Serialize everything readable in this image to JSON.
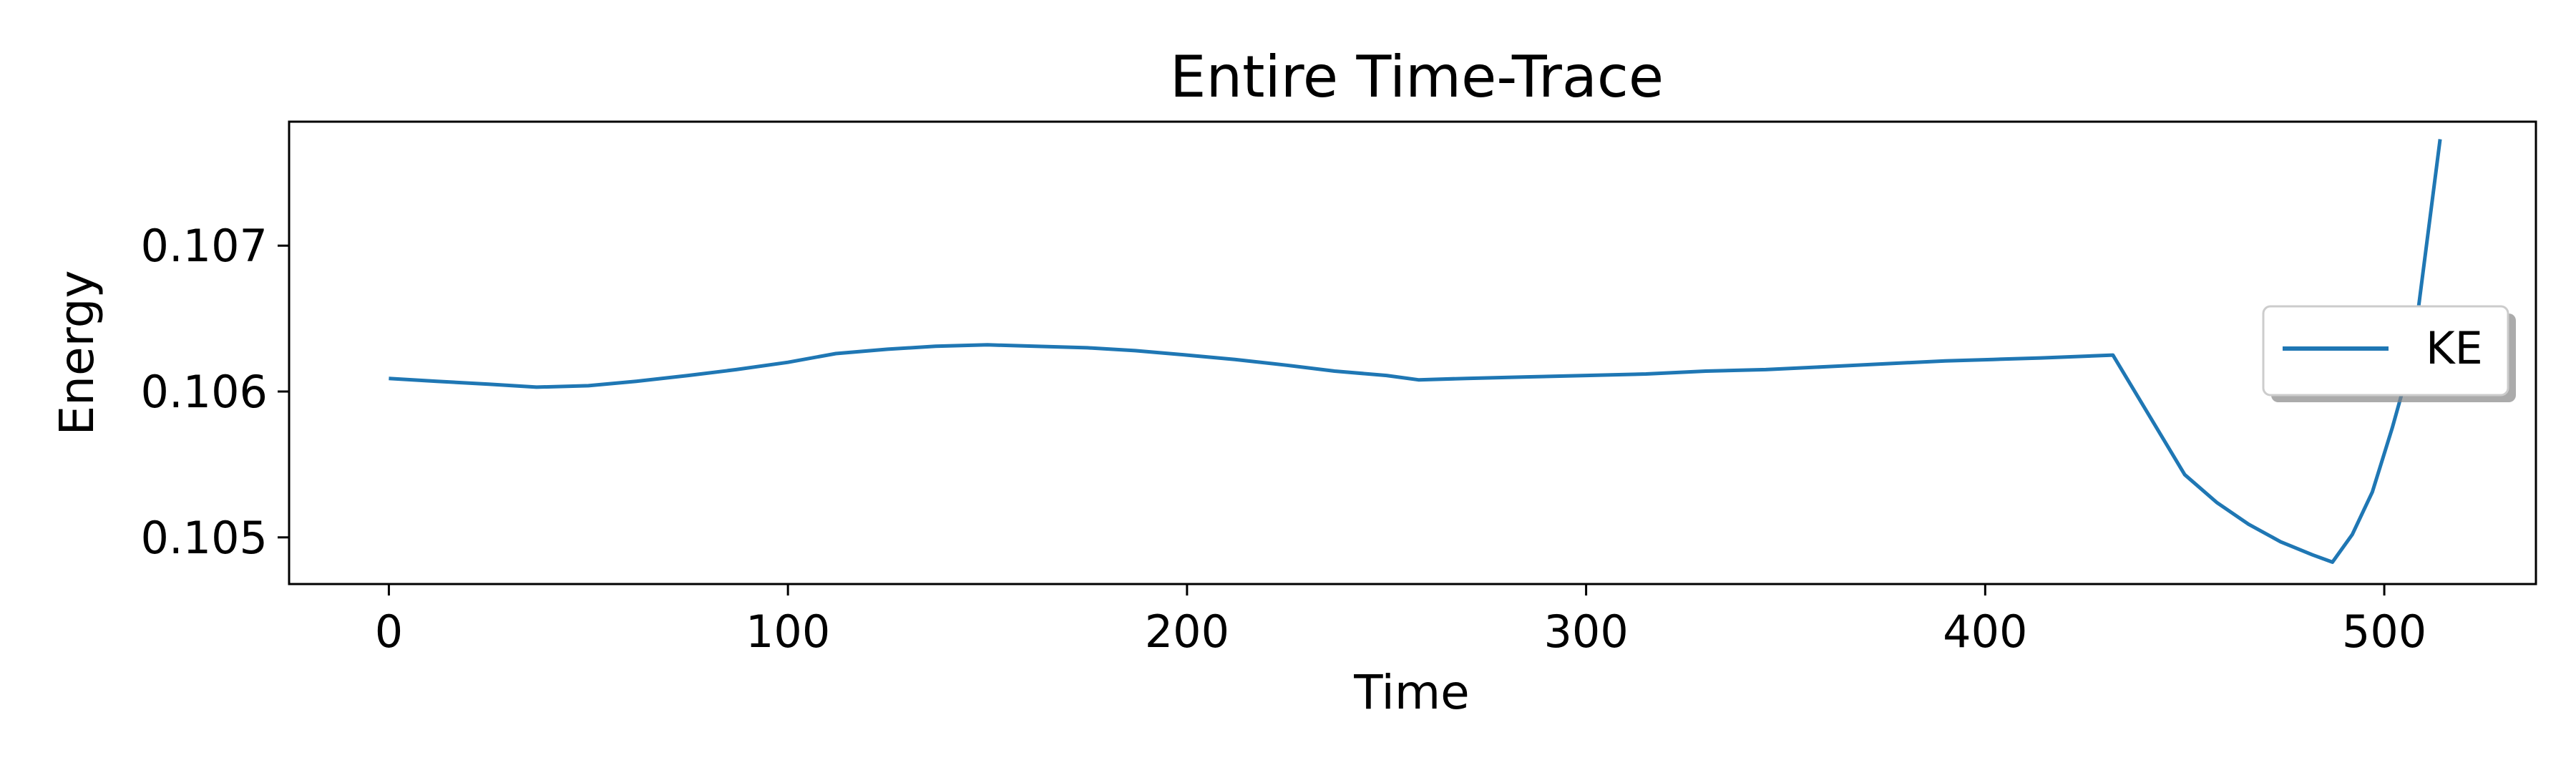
{
  "chart_data": {
    "type": "line",
    "title": "Entire Time-Trace",
    "xlabel": "Time",
    "ylabel": "Energy",
    "xlim": [
      -25,
      538
    ],
    "ylim": [
      0.10468,
      0.10785
    ],
    "xticks": [
      0,
      100,
      200,
      300,
      400,
      500
    ],
    "xtick_labels": [
      "0",
      "100",
      "200",
      "300",
      "400",
      "500"
    ],
    "yticks": [
      0.105,
      0.106,
      0.107
    ],
    "ytick_labels": [
      "0.105",
      "0.106",
      "0.107"
    ],
    "grid": false,
    "legend_position": "right",
    "colors": {
      "series": "#1f77b4"
    },
    "series": [
      {
        "name": "KE",
        "x": [
          0,
          12,
          25,
          37,
          50,
          62,
          75,
          87,
          100,
          112,
          125,
          137,
          150,
          162,
          175,
          187,
          200,
          212,
          225,
          237,
          250,
          258,
          270,
          285,
          300,
          315,
          330,
          345,
          360,
          375,
          390,
          402,
          414,
          432,
          450,
          458,
          466,
          474,
          482,
          487,
          492,
          497,
          502,
          507,
          514
        ],
        "y": [
          0.10609,
          0.10607,
          0.10605,
          0.10603,
          0.10604,
          0.10607,
          0.10611,
          0.10615,
          0.1062,
          0.10626,
          0.10629,
          0.10631,
          0.10632,
          0.10631,
          0.1063,
          0.10628,
          0.10625,
          0.10622,
          0.10618,
          0.10614,
          0.10611,
          0.10608,
          0.10609,
          0.1061,
          0.10611,
          0.10612,
          0.10614,
          0.10615,
          0.10617,
          0.10619,
          0.10621,
          0.10622,
          0.10623,
          0.10625,
          0.10543,
          0.10524,
          0.10509,
          0.10497,
          0.10488,
          0.10483,
          0.10502,
          0.10531,
          0.10575,
          0.10624,
          0.10773
        ]
      }
    ]
  }
}
